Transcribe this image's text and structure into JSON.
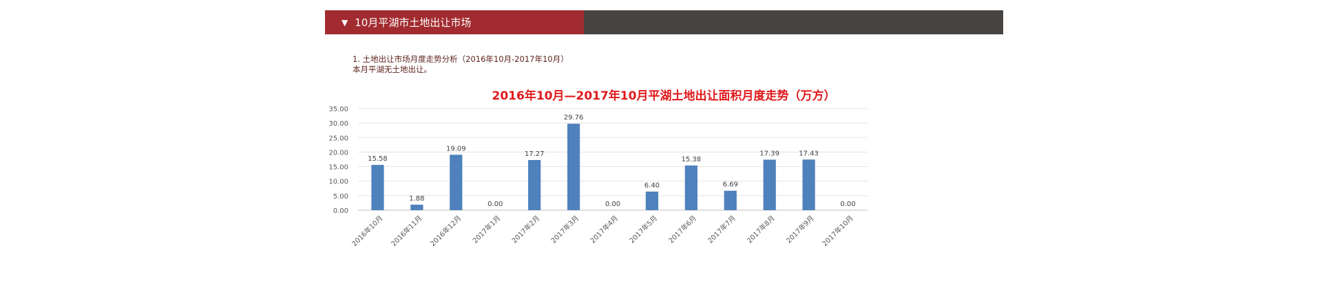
{
  "section": {
    "arrow": "▼",
    "title": "10月平湖市土地出让市场"
  },
  "intro": {
    "line1": "1. 土地出让市场月度走势分析（2016年10月-2017年10月）",
    "line2": "本月平湖无土地出让。"
  },
  "chart_data": {
    "type": "bar",
    "title": "2016年10月—2017年10月平湖土地出让面积月度走势（万方）",
    "categories": [
      "2016年10月",
      "2016年11月",
      "2016年12月",
      "2017年1月",
      "2017年2月",
      "2017年3月",
      "2017年4月",
      "2017年5月",
      "2017年6月",
      "2017年7月",
      "2017年8月",
      "2017年9月",
      "2017年10月"
    ],
    "values": [
      15.58,
      1.88,
      19.09,
      0.0,
      17.27,
      29.76,
      0.0,
      6.4,
      15.38,
      6.69,
      17.39,
      17.43,
      0.0
    ],
    "data_labels": [
      "15.58",
      "1.88",
      "19.09",
      "0.00",
      "17.27",
      "29.76",
      "0.00",
      "6.40",
      "15.38",
      "6.69",
      "17.39",
      "17.43",
      "0.00"
    ],
    "y_ticks": [
      "0.00",
      "5.00",
      "10.00",
      "15.00",
      "20.00",
      "25.00",
      "30.00",
      "35.00"
    ],
    "ylim": [
      0,
      35
    ],
    "grid": true,
    "bar_color": "#4f81bd",
    "title_color": "#e0191b"
  }
}
